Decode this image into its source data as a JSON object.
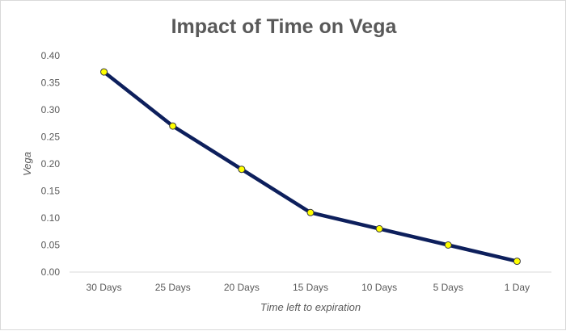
{
  "chart_data": {
    "type": "line",
    "title": "Impact of Time on Vega",
    "xlabel": "Time left to expiration",
    "ylabel": "Vega",
    "categories": [
      "30 Days",
      "25 Days",
      "20 Days",
      "15 Days",
      "10 Days",
      "5 Days",
      "1 Day"
    ],
    "series": [
      {
        "name": "Vega",
        "values": [
          0.37,
          0.27,
          0.19,
          0.11,
          0.08,
          0.05,
          0.02
        ]
      }
    ],
    "ylim": [
      0,
      0.4
    ],
    "yticks": [
      "0.00",
      "0.05",
      "0.10",
      "0.15",
      "0.20",
      "0.25",
      "0.30",
      "0.35",
      "0.40"
    ],
    "grid": false,
    "legend": "none",
    "colors": {
      "line": "#0d1f5c",
      "marker_fill": "#ffff00",
      "marker_edge": "#3a3a3a",
      "axis": "#d9d9d9",
      "text": "#595959"
    }
  }
}
